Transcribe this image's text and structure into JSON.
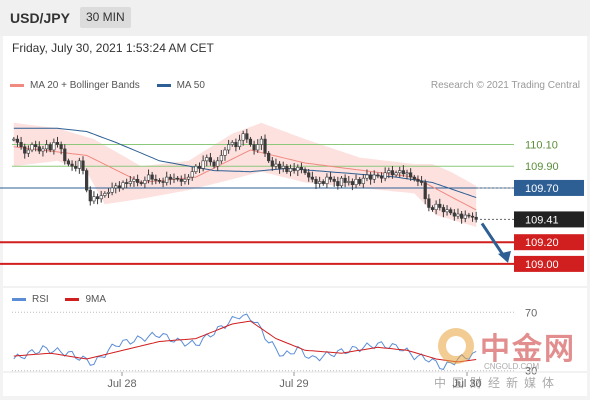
{
  "header": {
    "pair": "USD/JPY",
    "timeframe": "30 MIN"
  },
  "datetime": "Friday, July 30, 2021 1:53:24 AM CET",
  "legend": {
    "items": [
      {
        "label": "MA 20 + Bollinger Bands",
        "color": "#f08a80"
      },
      {
        "label": "MA 50",
        "color": "#2d5f94"
      }
    ],
    "credit": "Research © 2021 Trading Central"
  },
  "rsi_legend": {
    "items": [
      {
        "label": "RSI",
        "color": "#5b8dd6"
      },
      {
        "label": "9MA",
        "color": "#d11e1e"
      }
    ]
  },
  "watermark": {
    "cn": "中金网",
    "url": "CNGOLD.COM",
    "sub": "中国财经新媒体"
  },
  "colors": {
    "candle": "#3a3a3a",
    "bollinger_fill": "#fde1df",
    "ma20": "#f08a80",
    "ma50": "#2d5f94",
    "green_level": "#8cc87a",
    "blue_level": "#2d5f94",
    "red_level": "#d11e1e",
    "arrow": "#2d5f94"
  },
  "chart_data": [
    {
      "type": "candlestick",
      "ylim": [
        108.87,
        110.4
      ],
      "x_ticks": [
        "Jul 28",
        "Jul 29",
        "Jul 30"
      ],
      "levels": [
        {
          "value": 110.1,
          "label": "110.10",
          "kind": "resistance-green"
        },
        {
          "value": 109.9,
          "label": "109.90",
          "kind": "resistance-green"
        },
        {
          "value": 109.7,
          "label": "109.70",
          "kind": "pivot"
        },
        {
          "value": 109.41,
          "label": "109.41",
          "kind": "last-price"
        },
        {
          "value": 109.2,
          "label": "109.20",
          "kind": "support-red"
        },
        {
          "value": 109.0,
          "label": "109.00",
          "kind": "support-red"
        }
      ],
      "closes": [
        110.15,
        110.12,
        110.08,
        110.02,
        110.05,
        110.1,
        110.08,
        110.04,
        110.06,
        110.1,
        110.05,
        110.12,
        110.1,
        110.06,
        109.95,
        109.92,
        109.9,
        109.88,
        109.95,
        109.86,
        109.68,
        109.58,
        109.62,
        109.6,
        109.63,
        109.65,
        109.66,
        109.7,
        109.72,
        109.7,
        109.75,
        109.74,
        109.76,
        109.78,
        109.75,
        109.74,
        109.77,
        109.82,
        109.78,
        109.77,
        109.76,
        109.75,
        109.8,
        109.78,
        109.79,
        109.78,
        109.76,
        109.78,
        109.8,
        109.85,
        109.9,
        109.88,
        109.95,
        109.98,
        109.94,
        109.9,
        109.95,
        110,
        110.05,
        110.1,
        110.12,
        110.08,
        110.14,
        110.2,
        110.15,
        110.1,
        110.05,
        110.1,
        110.15,
        110.02,
        109.95,
        109.9,
        109.92,
        109.88,
        109.9,
        109.85,
        109.88,
        109.86,
        109.89,
        109.87,
        109.84,
        109.8,
        109.78,
        109.74,
        109.76,
        109.74,
        109.8,
        109.78,
        109.76,
        109.72,
        109.79,
        109.75,
        109.76,
        109.73,
        109.78,
        109.74,
        109.79,
        109.82,
        109.78,
        109.82,
        109.81,
        109.79,
        109.84,
        109.86,
        109.82,
        109.84,
        109.86,
        109.83,
        109.84,
        109.8,
        109.78,
        109.76,
        109.75,
        109.6,
        109.52,
        109.5,
        109.55,
        109.52,
        109.48,
        109.5,
        109.47,
        109.44,
        109.46,
        109.42,
        109.45,
        109.44,
        109.43,
        109.41
      ],
      "ma20_anchors": [
        [
          0,
          110.08
        ],
        [
          20,
          110.0
        ],
        [
          35,
          109.75
        ],
        [
          50,
          109.8
        ],
        [
          65,
          110.05
        ],
        [
          80,
          109.93
        ],
        [
          110,
          109.8
        ],
        [
          120,
          109.62
        ],
        [
          128,
          109.48
        ]
      ],
      "bb_upper_anchors": [
        [
          0,
          110.3
        ],
        [
          12,
          110.25
        ],
        [
          22,
          110.15
        ],
        [
          35,
          109.9
        ],
        [
          48,
          109.95
        ],
        [
          60,
          110.2
        ],
        [
          68,
          110.3
        ],
        [
          80,
          110.15
        ],
        [
          95,
          109.98
        ],
        [
          110,
          109.92
        ],
        [
          115,
          109.92
        ],
        [
          120,
          109.85
        ],
        [
          128,
          109.7
        ]
      ],
      "bb_lower_anchors": [
        [
          0,
          109.9
        ],
        [
          12,
          109.95
        ],
        [
          20,
          109.85
        ],
        [
          25,
          109.55
        ],
        [
          35,
          109.6
        ],
        [
          48,
          109.68
        ],
        [
          60,
          109.78
        ],
        [
          68,
          109.85
        ],
        [
          80,
          109.75
        ],
        [
          95,
          109.7
        ],
        [
          110,
          109.65
        ],
        [
          116,
          109.45
        ],
        [
          128,
          109.33
        ]
      ],
      "ma50_anchors": [
        [
          0,
          110.25
        ],
        [
          12,
          110.25
        ],
        [
          20,
          110.22
        ],
        [
          28,
          110.12
        ],
        [
          40,
          109.95
        ],
        [
          55,
          109.86
        ],
        [
          65,
          109.85
        ],
        [
          75,
          109.88
        ],
        [
          90,
          109.84
        ],
        [
          105,
          109.8
        ],
        [
          115,
          109.75
        ],
        [
          128,
          109.6
        ]
      ]
    },
    {
      "type": "line",
      "title": "RSI",
      "ylim": [
        25,
        75
      ],
      "levels": [
        {
          "value": 70,
          "label": "70"
        },
        {
          "value": 30,
          "label": "30"
        }
      ],
      "rsi_anchors": [
        [
          0,
          38
        ],
        [
          8,
          45
        ],
        [
          15,
          42
        ],
        [
          22,
          35
        ],
        [
          28,
          48
        ],
        [
          35,
          52
        ],
        [
          40,
          55
        ],
        [
          45,
          50
        ],
        [
          50,
          48
        ],
        [
          56,
          58
        ],
        [
          62,
          68
        ],
        [
          66,
          65
        ],
        [
          70,
          50
        ],
        [
          74,
          40
        ],
        [
          78,
          45
        ],
        [
          82,
          38
        ],
        [
          88,
          42
        ],
        [
          94,
          45
        ],
        [
          100,
          48
        ],
        [
          106,
          46
        ],
        [
          110,
          40
        ],
        [
          114,
          38
        ],
        [
          118,
          32
        ],
        [
          122,
          38
        ],
        [
          128,
          42
        ]
      ],
      "ma9_anchors": [
        [
          0,
          40
        ],
        [
          10,
          42
        ],
        [
          20,
          38
        ],
        [
          30,
          44
        ],
        [
          40,
          50
        ],
        [
          50,
          52
        ],
        [
          60,
          62
        ],
        [
          65,
          64
        ],
        [
          72,
          52
        ],
        [
          80,
          44
        ],
        [
          90,
          42
        ],
        [
          100,
          46
        ],
        [
          108,
          44
        ],
        [
          116,
          38
        ],
        [
          122,
          36
        ],
        [
          128,
          38
        ]
      ]
    }
  ]
}
